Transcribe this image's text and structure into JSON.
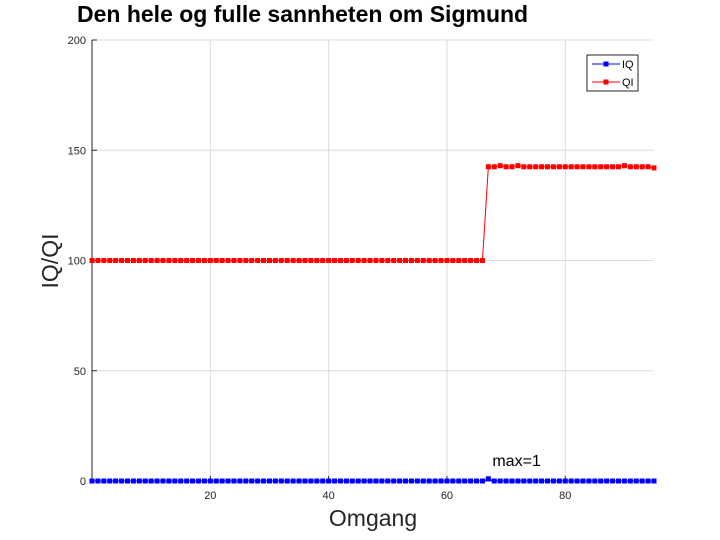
{
  "chart_data": {
    "type": "line",
    "title": "Den hele og fulle sannheten om Sigmund",
    "xlabel": "Omgang",
    "ylabel": "IQ/QI",
    "xlim": [
      0,
      95
    ],
    "ylim": [
      0,
      200
    ],
    "xticks": [
      20,
      40,
      60,
      80
    ],
    "yticks": [
      0,
      50,
      100,
      150,
      200
    ],
    "grid": true,
    "legend_position": "top-right",
    "x": [
      0,
      1,
      2,
      3,
      4,
      5,
      6,
      7,
      8,
      9,
      10,
      11,
      12,
      13,
      14,
      15,
      16,
      17,
      18,
      19,
      20,
      21,
      22,
      23,
      24,
      25,
      26,
      27,
      28,
      29,
      30,
      31,
      32,
      33,
      34,
      35,
      36,
      37,
      38,
      39,
      40,
      41,
      42,
      43,
      44,
      45,
      46,
      47,
      48,
      49,
      50,
      51,
      52,
      53,
      54,
      55,
      56,
      57,
      58,
      59,
      60,
      61,
      62,
      63,
      64,
      65,
      66,
      67,
      68,
      69,
      70,
      71,
      72,
      73,
      74,
      75,
      76,
      77,
      78,
      79,
      80,
      81,
      82,
      83,
      84,
      85,
      86,
      87,
      88,
      89,
      90,
      91,
      92,
      93,
      94,
      95
    ],
    "series": [
      {
        "name": "IQ",
        "color": "#0000ff",
        "values": [
          0,
          0,
          0,
          0,
          0,
          0,
          0,
          0,
          0,
          0,
          0,
          0,
          0,
          0,
          0,
          0,
          0,
          0,
          0,
          0,
          0,
          0,
          0,
          0,
          0,
          0,
          0,
          0,
          0,
          0,
          0,
          0,
          0,
          0,
          0,
          0,
          0,
          0,
          0,
          0,
          0,
          0,
          0,
          0,
          0,
          0,
          0,
          0,
          0,
          0,
          0,
          0,
          0,
          0,
          0,
          0,
          0,
          0,
          0,
          0,
          0,
          0,
          0,
          0,
          0,
          0,
          0,
          1,
          0,
          0,
          0,
          0,
          0,
          0,
          0,
          0,
          0,
          0,
          0,
          0,
          0,
          0,
          0,
          0,
          0,
          0,
          0,
          0,
          0,
          0,
          0,
          0,
          0,
          0,
          0,
          0
        ]
      },
      {
        "name": "QI",
        "color": "#ff0000",
        "values": [
          100,
          100,
          100,
          100,
          100,
          100,
          100,
          100,
          100,
          100,
          100,
          100,
          100,
          100,
          100,
          100,
          100,
          100,
          100,
          100,
          100,
          100,
          100,
          100,
          100,
          100,
          100,
          100,
          100,
          100,
          100,
          100,
          100,
          100,
          100,
          100,
          100,
          100,
          100,
          100,
          100,
          100,
          100,
          100,
          100,
          100,
          100,
          100,
          100,
          100,
          100,
          100,
          100,
          100,
          100,
          100,
          100,
          100,
          100,
          100,
          100,
          100,
          100,
          100,
          100,
          100,
          100,
          142.5,
          142.5,
          143,
          142.5,
          142.5,
          143,
          142.5,
          142.5,
          142.5,
          142.5,
          142.5,
          142.5,
          142.5,
          142.5,
          142.5,
          142.5,
          142.5,
          142.5,
          142.5,
          142.5,
          142.5,
          142.5,
          142.5,
          143,
          142.5,
          142.5,
          142.5,
          142.5,
          142
        ]
      }
    ],
    "annotations": [
      {
        "text": "max=1",
        "x": 67,
        "y": 1
      }
    ]
  }
}
